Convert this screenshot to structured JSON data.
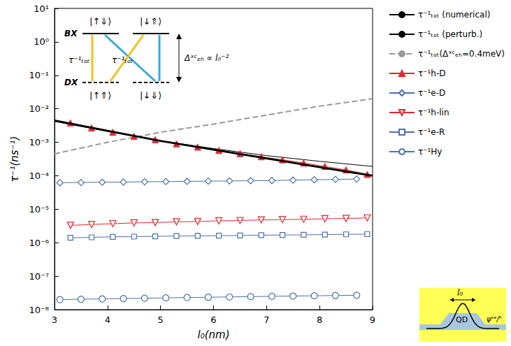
{
  "chart_data": {
    "type": "line",
    "xlabel": "l₀(nm)",
    "ylabel": "τ⁻¹(ns⁻¹)",
    "xlim": [
      3,
      9
    ],
    "xticks": [
      3,
      4,
      5,
      6,
      7,
      8,
      9
    ],
    "ylim": [
      1e-08,
      10
    ],
    "yticks": [
      {
        "value": 1e-08,
        "label": "10⁻⁸"
      },
      {
        "value": 1e-07,
        "label": "10⁻⁷"
      },
      {
        "value": 1e-06,
        "label": "10⁻⁶"
      },
      {
        "value": 1e-05,
        "label": "10⁻⁵"
      },
      {
        "value": 0.0001,
        "label": "10⁻⁴"
      },
      {
        "value": 0.001,
        "label": "10⁻³"
      },
      {
        "value": 0.01,
        "label": "10⁻²"
      },
      {
        "value": 0.1,
        "label": "10⁻¹"
      },
      {
        "value": 1,
        "label": "10⁰"
      },
      {
        "value": 10,
        "label": "10¹"
      }
    ],
    "log": "y",
    "grid": false,
    "legend": "right",
    "series": [
      {
        "name": "τ⁻¹ₜₒₜ (numerical)",
        "color": "#000000",
        "marker": "none",
        "line_style": "thick",
        "x": [
          3,
          4,
          5,
          6,
          7,
          8,
          9
        ],
        "values": [
          0.0045,
          0.0022,
          0.0011,
          0.0006,
          0.00033,
          0.00018,
          0.0001
        ]
      },
      {
        "name": "τ⁻¹ₜₒₜ (perturb.)",
        "color": "#000000",
        "marker": "none",
        "line_style": "solid",
        "x": [
          3,
          4,
          5,
          6,
          7,
          8,
          9
        ],
        "values": [
          0.0042,
          0.0021,
          0.0011,
          0.00065,
          0.0004,
          0.00027,
          0.00019
        ]
      },
      {
        "name": "τ⁻¹ₜₒₜ(Δˣᶜₑₕ=0.4meV)",
        "color": "#999999",
        "marker": "none",
        "line_style": "dashed",
        "x": [
          3,
          4,
          5,
          6,
          7,
          8,
          9
        ],
        "values": [
          0.00045,
          0.001,
          0.002,
          0.0035,
          0.0065,
          0.012,
          0.02
        ]
      },
      {
        "name": "τ⁻¹h-D",
        "color": "#e8262c",
        "marker": "triangle",
        "line_style": "solid",
        "x": [
          3.3,
          3.7,
          4.1,
          4.5,
          4.9,
          5.3,
          5.7,
          6.1,
          6.5,
          6.9,
          7.3,
          7.7,
          8.1,
          8.5,
          8.9
        ],
        "values": [
          0.0038,
          0.0027,
          0.002,
          0.0015,
          0.0012,
          0.0009,
          0.00072,
          0.00057,
          0.00046,
          0.00037,
          0.0003,
          0.00024,
          0.00019,
          0.00015,
          0.00011
        ]
      },
      {
        "name": "τ⁻¹e-D",
        "color": "#4a6fb0",
        "marker": "diamond-open",
        "line_style": "solid",
        "x": [
          3.1,
          3.5,
          3.9,
          4.3,
          4.7,
          5.1,
          5.5,
          5.9,
          6.3,
          6.7,
          7.1,
          7.5,
          7.9,
          8.3,
          8.7
        ],
        "values": [
          6.2e-05,
          6.3e-05,
          6.4e-05,
          6.5e-05,
          6.6e-05,
          6.7e-05,
          6.8e-05,
          6.9e-05,
          7e-05,
          7.1e-05,
          7.2e-05,
          7.4e-05,
          7.6e-05,
          7.8e-05,
          8e-05
        ]
      },
      {
        "name": "τ⁻¹h-lin",
        "color": "#e8262c",
        "marker": "triangle-down-open",
        "line_style": "solid",
        "x": [
          3.3,
          3.7,
          4.1,
          4.5,
          4.9,
          5.3,
          5.7,
          6.1,
          6.5,
          6.9,
          7.3,
          7.7,
          8.1,
          8.5,
          8.9
        ],
        "values": [
          3.3e-06,
          3.5e-06,
          3.7e-06,
          3.9e-06,
          4e-06,
          4.2e-06,
          4.3e-06,
          4.5e-06,
          4.6e-06,
          4.8e-06,
          4.9e-06,
          5e-06,
          5.2e-06,
          5.3e-06,
          5.5e-06
        ]
      },
      {
        "name": "τ⁻¹e-R",
        "color": "#4a6fb0",
        "marker": "square-open",
        "line_style": "solid",
        "x": [
          3.3,
          3.7,
          4.1,
          4.5,
          4.9,
          5.3,
          5.7,
          6.1,
          6.5,
          6.9,
          7.3,
          7.7,
          8.1,
          8.5,
          8.9
        ],
        "values": [
          1.4e-06,
          1.45e-06,
          1.5e-06,
          1.52e-06,
          1.55e-06,
          1.58e-06,
          1.6e-06,
          1.62e-06,
          1.65e-06,
          1.68e-06,
          1.7e-06,
          1.72e-06,
          1.75e-06,
          1.78e-06,
          1.8e-06
        ]
      },
      {
        "name": "τ⁻¹Hy",
        "color": "#4a6fb0",
        "marker": "circle-open",
        "line_style": "solid",
        "x": [
          3.1,
          3.5,
          3.9,
          4.3,
          4.7,
          5.1,
          5.5,
          5.9,
          6.3,
          6.7,
          7.1,
          7.5,
          7.9,
          8.3,
          8.7
        ],
        "values": [
          2e-08,
          2.05e-08,
          2.1e-08,
          2.15e-08,
          2.2e-08,
          2.25e-08,
          2.3e-08,
          2.35e-08,
          2.4e-08,
          2.45e-08,
          2.5e-08,
          2.55e-08,
          2.6e-08,
          2.65e-08,
          2.7e-08
        ]
      }
    ],
    "inset": {
      "upper_label": "BX",
      "lower_label": "DX",
      "upper_states": [
        "|↑⇓⟩",
        "|↓⇑⟩"
      ],
      "lower_states": [
        "|↑⇑⟩",
        "|↓⇓⟩"
      ],
      "rate_label": "τ⁻¹ₜₒₜ",
      "splitting_label": "Δˣᶜₑₕ ∝ l₀⁻²"
    },
    "sketch": {
      "width_label": "l₀",
      "dot_label": "QD",
      "wavefunction_label": "ψˢᵉ/ʰ"
    }
  }
}
